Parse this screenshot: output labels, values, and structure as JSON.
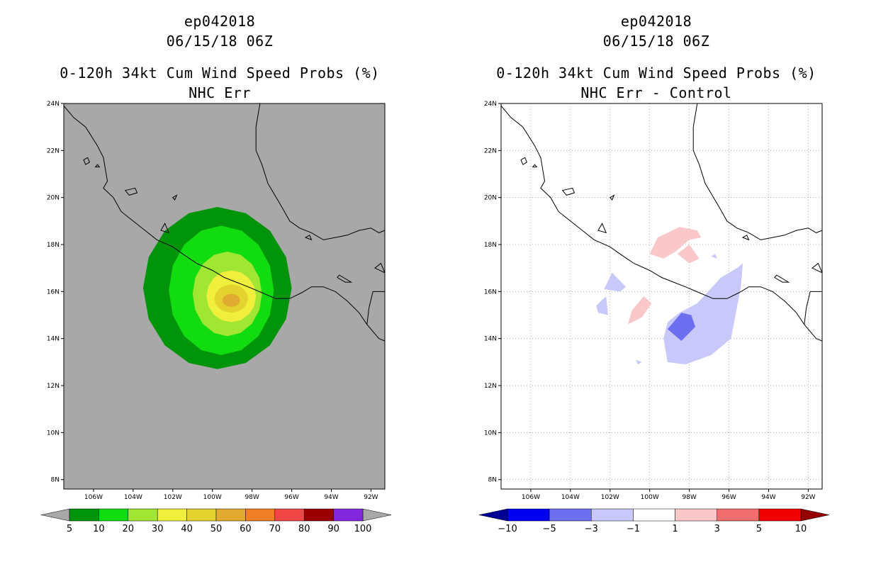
{
  "chart_data": [
    {
      "type": "contour-map",
      "title": [
        "ep042018",
        "06/15/18 06Z",
        "0-120h 34kt Cum Wind Speed Probs (%)",
        "NHC Err"
      ],
      "background_color": "#a8a8a8",
      "x_ticks": [
        "106W",
        "104W",
        "102W",
        "100W",
        "98W",
        "96W",
        "94W",
        "92W"
      ],
      "y_ticks": [
        "24N",
        "22N",
        "20N",
        "18N",
        "16N",
        "14N",
        "12N",
        "10N",
        "8N"
      ],
      "lon_range": [
        -107.5,
        -91.3
      ],
      "lat_range": [
        7.6,
        24.0
      ],
      "center": {
        "lon": -99.1,
        "lat": 15.6
      },
      "levels": [
        5,
        10,
        20,
        30,
        40,
        50,
        60,
        70,
        80,
        90,
        100
      ],
      "colors": [
        "#00940a",
        "#10dc10",
        "#a0e632",
        "#f0f03c",
        "#e4d22e",
        "#e1aa30",
        "#f07f26",
        "#f04646",
        "#9b0000",
        "#8228dc"
      ],
      "filled_contours": [
        {
          "level": 5,
          "color": "#00940a",
          "extent": {
            "west": -103.5,
            "east": -96.0,
            "south": 12.7,
            "north": 19.6
          }
        },
        {
          "level": 10,
          "color": "#10dc10",
          "extent": {
            "west": -102.2,
            "east": -96.9,
            "south": 13.3,
            "north": 18.8
          }
        },
        {
          "level": 20,
          "color": "#a0e632",
          "extent": {
            "west": -101.0,
            "east": -97.5,
            "south": 14.1,
            "north": 17.7
          }
        },
        {
          "level": 30,
          "color": "#f0f03c",
          "extent": {
            "west": -100.3,
            "east": -97.8,
            "south": 14.7,
            "north": 16.9
          }
        },
        {
          "level": 40,
          "color": "#e4d22e",
          "extent": {
            "west": -99.9,
            "east": -98.2,
            "south": 15.1,
            "north": 16.3
          }
        },
        {
          "level": 50,
          "color": "#e1aa30",
          "extent": {
            "west": -99.5,
            "east": -98.6,
            "south": 15.35,
            "north": 15.9
          }
        }
      ],
      "colorbar": {
        "labels": [
          "5",
          "10",
          "20",
          "30",
          "40",
          "50",
          "60",
          "70",
          "80",
          "90",
          "100"
        ]
      }
    },
    {
      "type": "contour-map",
      "title": [
        "ep042018",
        "06/15/18 06Z",
        "0-120h 34kt Cum Wind Speed Probs (%)",
        "NHC Err - Control"
      ],
      "background_color": "#ffffff",
      "x_ticks": [
        "106W",
        "104W",
        "102W",
        "100W",
        "98W",
        "96W",
        "94W",
        "92W"
      ],
      "y_ticks": [
        "24N",
        "22N",
        "20N",
        "18N",
        "16N",
        "14N",
        "12N",
        "10N",
        "8N"
      ],
      "lon_range": [
        -107.5,
        -91.3
      ],
      "lat_range": [
        7.6,
        24.0
      ],
      "levels": [
        -10,
        -5,
        -3,
        -1,
        1,
        3,
        5,
        10
      ],
      "colors": [
        "#000096",
        "#0000f0",
        "#6e6ef0",
        "#c8c8fa",
        "#ffffff",
        "#fac8c8",
        "#f06e6e",
        "#f00000",
        "#960000"
      ],
      "filled_contours": [
        {
          "range": "1 to 3",
          "color": "#fac8c8",
          "region": "north of coast near 100W-98W"
        },
        {
          "range": "1 to 3",
          "color": "#fac8c8",
          "region": "near 101W 15N"
        },
        {
          "range": "-3 to -1",
          "color": "#c8c8fa",
          "region": "98W-96W, 13N-17N"
        },
        {
          "range": "-3 to -1",
          "color": "#c8c8fa",
          "region": "near 102W 16.5N"
        },
        {
          "range": "-5 to -3",
          "color": "#6e6ef0",
          "region": "near 98.5W 14.7N"
        }
      ],
      "colorbar": {
        "labels": [
          "-10",
          "-5",
          "-3",
          "-1",
          "1",
          "3",
          "5",
          "10"
        ]
      }
    }
  ]
}
